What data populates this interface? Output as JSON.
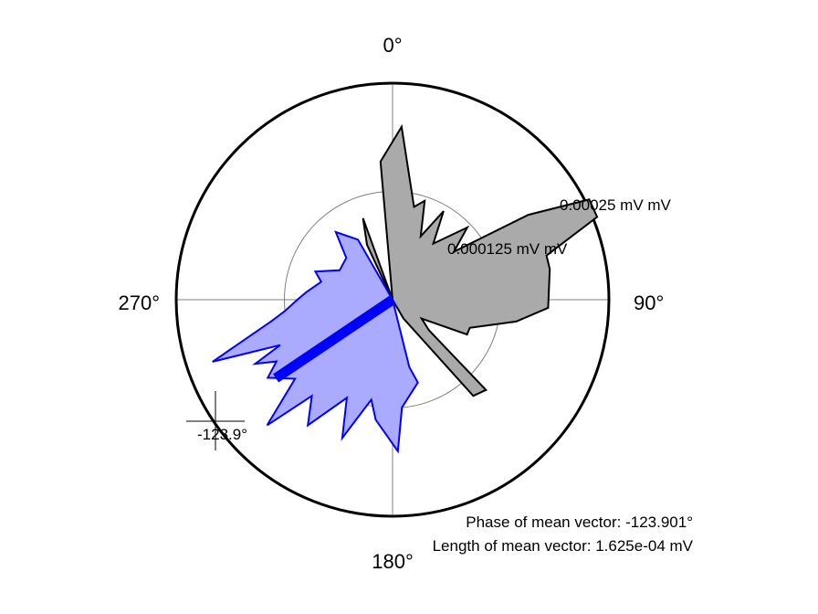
{
  "chart_data": {
    "type": "polar-histogram",
    "direction_labels": {
      "north": "0°",
      "east": "90°",
      "south": "180°",
      "west": "270°"
    },
    "ring_labels": [
      "0.000125 mV mV",
      "0.00025 mV mV"
    ],
    "ring_values": [
      0.000125,
      0.00025
    ],
    "rmax": 0.00025,
    "series": [
      {
        "color": "#aaaaaa",
        "stroke": "#000000",
        "points": [
          [
            0,
            0
          ],
          [
            355,
            0.00016
          ],
          [
            3,
            0.0002
          ],
          [
            13,
            0.00011
          ],
          [
            18,
            0.00012
          ],
          [
            24,
            8e-05
          ],
          [
            30,
            0.000118
          ],
          [
            36,
            8e-05
          ],
          [
            46,
            0.00012
          ],
          [
            52,
            9e-05
          ],
          [
            58,
            0.000185
          ],
          [
            63,
            0.000255
          ],
          [
            68,
            0.000255
          ],
          [
            74,
            0.000185
          ],
          [
            79,
            0.000185
          ],
          [
            93,
            0.00018
          ],
          [
            100,
            0.000145
          ],
          [
            110,
            9.5e-05
          ],
          [
            115,
            9.5e-05
          ],
          [
            123,
            4e-05
          ],
          [
            130,
            5.5e-05
          ],
          [
            134,
            0.00015
          ],
          [
            140,
            0.000145
          ],
          [
            150,
            2.5e-05
          ],
          [
            0,
            0
          ],
          [
            340,
            0.0001
          ],
          [
            335,
            7e-05
          ],
          [
            0,
            0
          ]
        ]
      },
      {
        "color": "#aaaaff",
        "stroke": "#0000ff",
        "points": [
          [
            0,
            0
          ],
          [
            166,
            8e-05
          ],
          [
            163,
            0.0001
          ],
          [
            175,
            0.000125
          ],
          [
            178,
            0.000175
          ],
          [
            188,
            0.00014
          ],
          [
            192,
            0.000118
          ],
          [
            200,
            0.00017
          ],
          [
            205,
            0.000125
          ],
          [
            214,
            0.000175
          ],
          [
            220,
            0.000145
          ],
          [
            225,
            0.000205
          ],
          [
            231,
            0.000145
          ],
          [
            238,
            0.00017
          ],
          [
            242,
            0.000152
          ],
          [
            245,
            0.000175
          ],
          [
            248,
            0.00014
          ],
          [
            251,
            0.00022
          ],
          [
            260,
            0.000142
          ],
          [
            264,
            0.000125
          ],
          [
            270,
            0.00011
          ],
          [
            275,
            0.0001
          ],
          [
            284,
            8.5e-05
          ],
          [
            290,
            9.5e-05
          ],
          [
            299,
            7e-05
          ],
          [
            312,
            7.2e-05
          ],
          [
            320,
            0.000102
          ],
          [
            330,
            8e-05
          ],
          [
            0,
            0
          ]
        ]
      }
    ],
    "mean_vector": {
      "phase_deg": -123.9,
      "length": 0.0001625,
      "color": "#0000ff",
      "angle_label": "-123.9°"
    },
    "phase_text": "Phase of mean vector: -123.901°",
    "length_text": "Length of mean vector: 1.625e-04 mV"
  }
}
